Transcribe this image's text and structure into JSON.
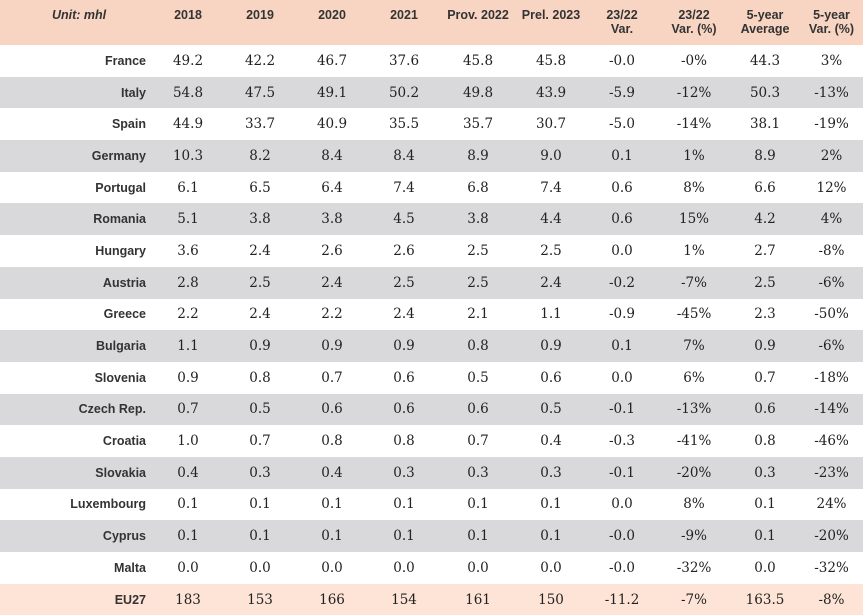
{
  "table": {
    "headers": [
      "Unit: mhl",
      "2018",
      "2019",
      "2020",
      "2021",
      "Prov. 2022",
      "Prel. 2023",
      "23/22\nVar.",
      "23/22\nVar. (%)",
      "5-year\nAverage",
      "5-year\nVar. (%)"
    ],
    "rows": [
      [
        "France",
        "49.2",
        "42.2",
        "46.7",
        "37.6",
        "45.8",
        "45.8",
        "-0.0",
        "-0%",
        "44.3",
        "3%"
      ],
      [
        "Italy",
        "54.8",
        "47.5",
        "49.1",
        "50.2",
        "49.8",
        "43.9",
        "-5.9",
        "-12%",
        "50.3",
        "-13%"
      ],
      [
        "Spain",
        "44.9",
        "33.7",
        "40.9",
        "35.5",
        "35.7",
        "30.7",
        "-5.0",
        "-14%",
        "38.1",
        "-19%"
      ],
      [
        "Germany",
        "10.3",
        "8.2",
        "8.4",
        "8.4",
        "8.9",
        "9.0",
        "0.1",
        "1%",
        "8.9",
        "2%"
      ],
      [
        "Portugal",
        "6.1",
        "6.5",
        "6.4",
        "7.4",
        "6.8",
        "7.4",
        "0.6",
        "8%",
        "6.6",
        "12%"
      ],
      [
        "Romania",
        "5.1",
        "3.8",
        "3.8",
        "4.5",
        "3.8",
        "4.4",
        "0.6",
        "15%",
        "4.2",
        "4%"
      ],
      [
        "Hungary",
        "3.6",
        "2.4",
        "2.6",
        "2.6",
        "2.5",
        "2.5",
        "0.0",
        "1%",
        "2.7",
        "-8%"
      ],
      [
        "Austria",
        "2.8",
        "2.5",
        "2.4",
        "2.5",
        "2.5",
        "2.4",
        "-0.2",
        "-7%",
        "2.5",
        "-6%"
      ],
      [
        "Greece",
        "2.2",
        "2.4",
        "2.2",
        "2.4",
        "2.1",
        "1.1",
        "-0.9",
        "-45%",
        "2.3",
        "-50%"
      ],
      [
        "Bulgaria",
        "1.1",
        "0.9",
        "0.9",
        "0.9",
        "0.8",
        "0.9",
        "0.1",
        "7%",
        "0.9",
        "-6%"
      ],
      [
        "Slovenia",
        "0.9",
        "0.8",
        "0.7",
        "0.6",
        "0.5",
        "0.6",
        "0.0",
        "6%",
        "0.7",
        "-18%"
      ],
      [
        "Czech Rep.",
        "0.7",
        "0.5",
        "0.6",
        "0.6",
        "0.6",
        "0.5",
        "-0.1",
        "-13%",
        "0.6",
        "-14%"
      ],
      [
        "Croatia",
        "1.0",
        "0.7",
        "0.8",
        "0.8",
        "0.7",
        "0.4",
        "-0.3",
        "-41%",
        "0.8",
        "-46%"
      ],
      [
        "Slovakia",
        "0.4",
        "0.3",
        "0.4",
        "0.3",
        "0.3",
        "0.3",
        "-0.1",
        "-20%",
        "0.3",
        "-23%"
      ],
      [
        "Luxembourg",
        "0.1",
        "0.1",
        "0.1",
        "0.1",
        "0.1",
        "0.1",
        "0.0",
        "8%",
        "0.1",
        "24%"
      ],
      [
        "Cyprus",
        "0.1",
        "0.1",
        "0.1",
        "0.1",
        "0.1",
        "0.1",
        "-0.0",
        "-9%",
        "0.1",
        "-20%"
      ],
      [
        "Malta",
        "0.0",
        "0.0",
        "0.0",
        "0.0",
        "0.0",
        "0.0",
        "-0.0",
        "-32%",
        "0.0",
        "-32%"
      ],
      [
        "EU27",
        "183",
        "153",
        "166",
        "154",
        "161",
        "150",
        "-11.2",
        "-7%",
        "163.5",
        "-8%"
      ]
    ]
  },
  "colors": {
    "header_bg": "#f8d5c3",
    "stripe_bg": "#d9d9db",
    "total_bg": "#fde4d6"
  }
}
